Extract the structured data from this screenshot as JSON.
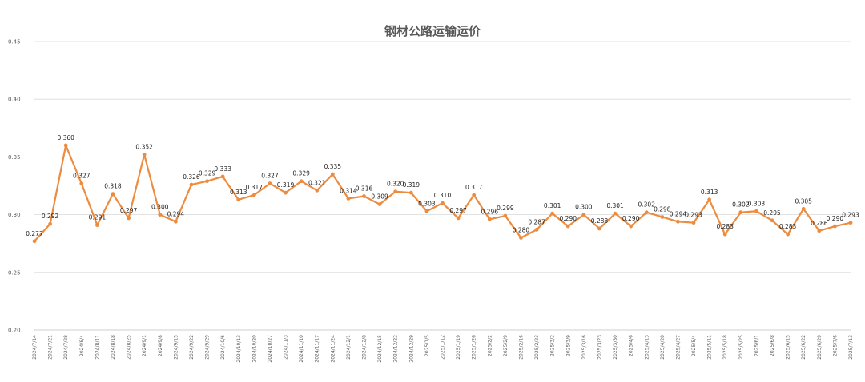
{
  "chart_data": {
    "type": "line",
    "title": "钢材公路运输运价",
    "xlabel": "",
    "ylabel": "",
    "ylim": [
      0.2,
      0.45
    ],
    "yticks": [
      "0.20",
      "0.25",
      "0.30",
      "0.35",
      "0.40",
      "0.45"
    ],
    "grid": true,
    "legend": "none",
    "line_color": "#ED8B3E",
    "categories": [
      "2024/7/14",
      "2024/7/21",
      "2024/7/28",
      "2024/8/4",
      "2024/8/11",
      "2024/8/18",
      "2024/8/25",
      "2024/9/1",
      "2024/9/8",
      "2024/9/15",
      "2024/9/22",
      "2024/9/29",
      "2024/10/6",
      "2024/10/13",
      "2024/10/20",
      "2024/10/27",
      "2024/11/3",
      "2024/11/10",
      "2024/11/17",
      "2024/11/24",
      "2024/12/1",
      "2024/12/8",
      "2024/12/15",
      "2024/12/22",
      "2024/12/29",
      "2025/1/5",
      "2025/1/12",
      "2025/1/19",
      "2025/1/26",
      "2025/2/2",
      "2025/2/9",
      "2025/2/16",
      "2025/2/23",
      "2025/3/2",
      "2025/3/9",
      "2025/3/16",
      "2025/3/23",
      "2025/3/30",
      "2025/4/6",
      "2025/4/13",
      "2025/4/20",
      "2025/4/27",
      "2025/5/4",
      "2025/5/11",
      "2025/5/18",
      "2025/5/25",
      "2025/6/1",
      "2025/6/8",
      "2025/6/15",
      "2025/6/22",
      "2025/6/29",
      "2025/7/6",
      "2025/7/13"
    ],
    "values": [
      0.277,
      0.292,
      0.36,
      0.327,
      0.291,
      0.318,
      0.297,
      0.352,
      0.3,
      0.294,
      0.326,
      0.329,
      0.333,
      0.313,
      0.317,
      0.327,
      0.319,
      0.329,
      0.321,
      0.335,
      0.314,
      0.316,
      0.309,
      0.32,
      0.319,
      0.303,
      0.31,
      0.297,
      0.317,
      0.296,
      0.299,
      0.28,
      0.287,
      0.301,
      0.29,
      0.3,
      0.288,
      0.301,
      0.29,
      0.302,
      0.298,
      0.294,
      0.293,
      0.313,
      0.283,
      0.302,
      0.303,
      0.295,
      0.283,
      0.305,
      0.286,
      0.29,
      0.293
    ],
    "labels": [
      "0.277",
      "0.292",
      "0.360",
      "0.327",
      "0.291",
      "0.318",
      "0.297",
      "0.352",
      "0.300",
      "0.294",
      "0.326",
      "0.329",
      "0.333",
      "0.313",
      "0.317",
      "0.327",
      "0.319",
      "0.329",
      "0.321",
      "0.335",
      "0.314",
      "0.316",
      "0.309",
      "0.320",
      "0.319",
      "0.303",
      "0.310",
      "0.297",
      "0.317",
      "0.296",
      "0.299",
      "0.280",
      "0.287",
      "0.301",
      "0.290",
      "0.300",
      "0.288",
      "0.301",
      "0.290",
      "0.302",
      "0.298",
      "0.294",
      "0.293",
      "0.313",
      "0.283",
      "0.302",
      "0.303",
      "0.295",
      "0.283",
      "0.305",
      "0.286",
      "0.290",
      "0.293"
    ]
  }
}
